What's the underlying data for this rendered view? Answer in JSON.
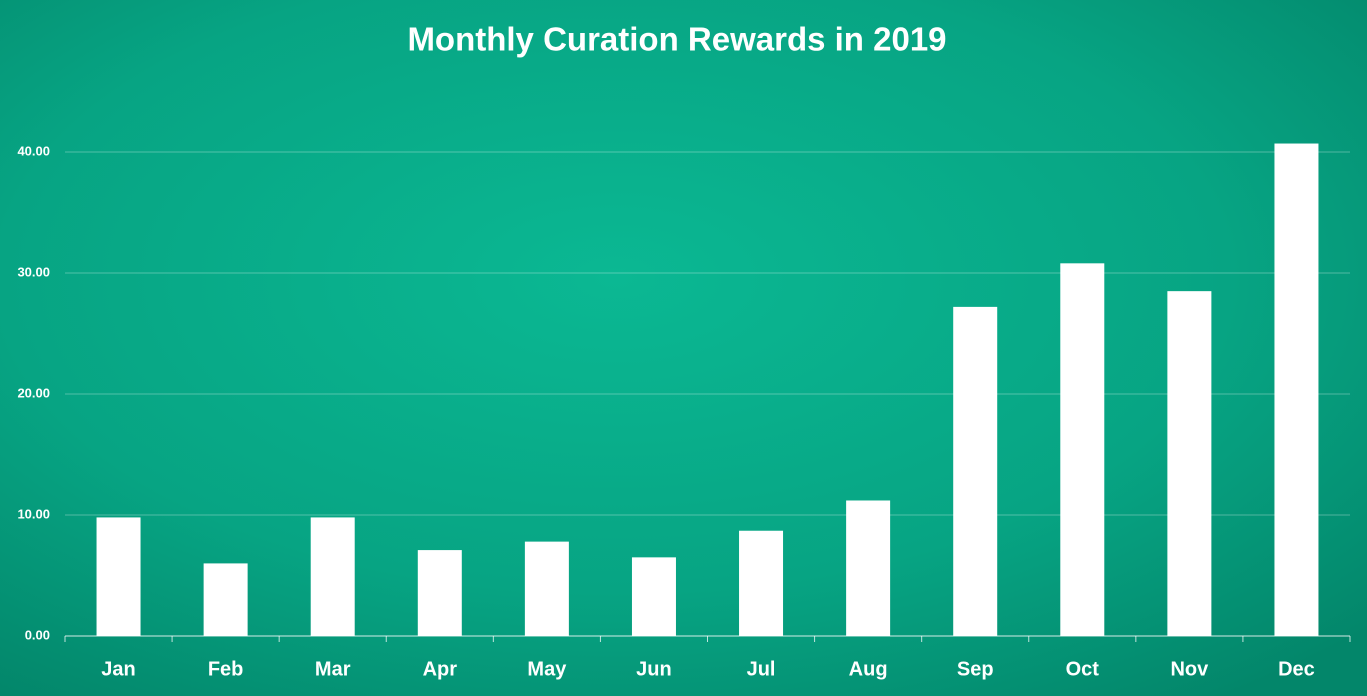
{
  "chart_data": {
    "type": "bar",
    "title": "Monthly Curation Rewards in 2019",
    "categories": [
      "Jan",
      "Feb",
      "Mar",
      "Apr",
      "May",
      "Jun",
      "Jul",
      "Aug",
      "Sep",
      "Oct",
      "Nov",
      "Dec"
    ],
    "values": [
      9.8,
      6.0,
      9.8,
      7.1,
      7.8,
      6.5,
      8.7,
      11.2,
      27.2,
      30.8,
      28.5,
      40.7
    ],
    "color": "#ffffff",
    "ylim": [
      0,
      45
    ],
    "yticks": [
      {
        "value": 0,
        "label": "0.00"
      },
      {
        "value": 10,
        "label": "10.00"
      },
      {
        "value": 20,
        "label": "20.00"
      },
      {
        "value": 30,
        "label": "30.00"
      },
      {
        "value": 40,
        "label": "40.00"
      }
    ],
    "grid": true
  }
}
